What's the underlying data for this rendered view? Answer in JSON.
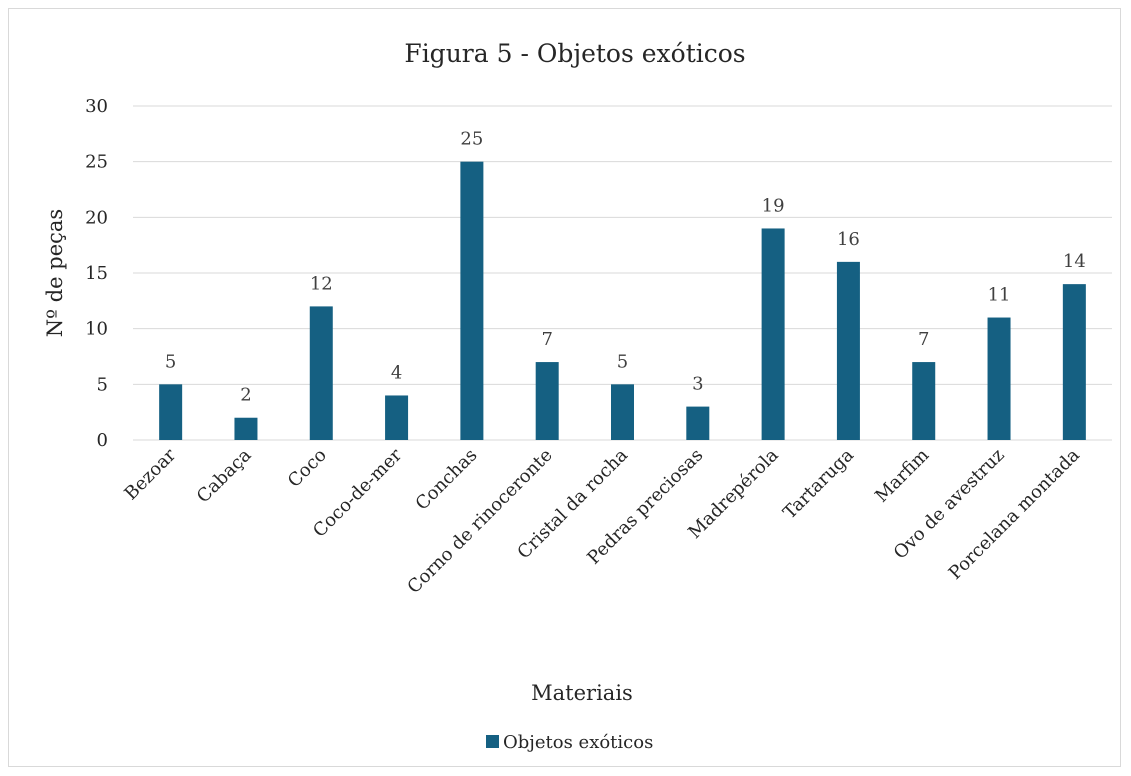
{
  "chart_data": {
    "type": "bar",
    "title": "Figura 5 - Objetos exóticos",
    "xlabel": "Materiais",
    "ylabel": "Nº de peças",
    "categories": [
      "Bezoar",
      "Cabaça",
      "Coco",
      "Coco-de-mer",
      "Conchas",
      "Corno de rinoceronte",
      "Cristal da rocha",
      "Pedras preciosas",
      "Madrepérola",
      "Tartaruga",
      "Marfim",
      "Ovo de avestruz",
      "Porcelana montada"
    ],
    "series": [
      {
        "name": "Objetos exóticos",
        "values": [
          5,
          2,
          12,
          4,
          25,
          7,
          5,
          3,
          19,
          16,
          7,
          11,
          14
        ]
      }
    ],
    "ylim": [
      0,
      30
    ],
    "yticks": [
      0,
      5,
      10,
      15,
      20,
      25,
      30
    ],
    "grid": true,
    "legend": "bottom",
    "data_labels": true,
    "colors": {
      "bar": "#156082",
      "grid": "#d9d9d9",
      "text": "#262626"
    }
  }
}
